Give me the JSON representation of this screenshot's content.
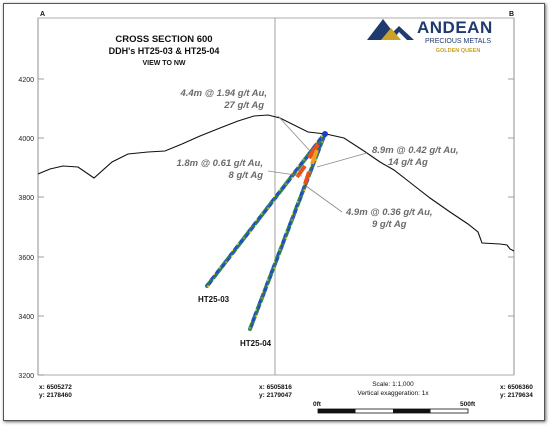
{
  "section": {
    "title": "CROSS SECTION 600",
    "subtitle": "DDH's HT25-03 & HT25-04",
    "view": "VIEW TO NW"
  },
  "logo": {
    "company": "ANDEAN",
    "line2": "PRECIOUS METALS",
    "line3": "GOLDEN QUEEN",
    "colors": {
      "blue": "#1f3a6e",
      "gold": "#c9a227"
    }
  },
  "corners": {
    "left": "A",
    "right": "B"
  },
  "elevations": [
    {
      "label": "4200",
      "value": 4200
    },
    {
      "label": "4000",
      "value": 4000
    },
    {
      "label": "3800",
      "value": 3800
    },
    {
      "label": "3600",
      "value": 3600
    },
    {
      "label": "3400",
      "value": 3400
    },
    {
      "label": "3200",
      "value": 3200
    }
  ],
  "coords": {
    "left": {
      "x": "x: 6505272",
      "y": "y: 2178460"
    },
    "center": {
      "x": "x: 6505816",
      "y": "y: 2179047"
    },
    "right": {
      "x": "x: 6506360",
      "y": "y: 2179634"
    }
  },
  "scale": {
    "text": "Scale: 1:1,000",
    "exaggeration": "Vertical exaggeration: 1x",
    "start": "0ft",
    "end": "500ft"
  },
  "holes": [
    {
      "name": "HT25-03"
    },
    {
      "name": "HT25-04"
    }
  ],
  "intercepts": [
    {
      "line1": "4.4m @ 1.94 g/t Au,",
      "line2": "27 g/t Ag"
    },
    {
      "line1": "8.9m @ 0.42 g/t Au,",
      "line2": "14 g/t Ag"
    },
    {
      "line1": "1.8m @ 0.61 g/t Au,",
      "line2": "8 g/t Ag"
    },
    {
      "line1": "4.9m @ 0.36 g/t Au,",
      "line2": "9 g/t Ag"
    }
  ]
}
